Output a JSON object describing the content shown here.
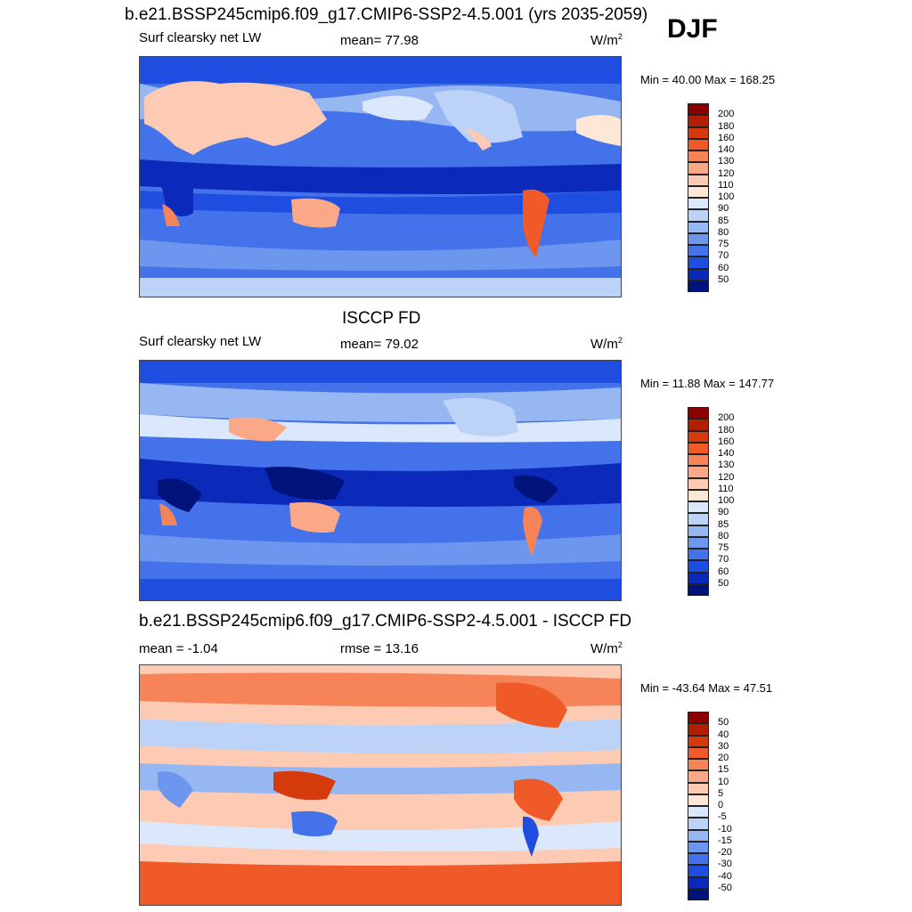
{
  "header": {
    "title": "b.e21.BSSP245cmip6.f09_g17.CMIP6-SSP2-4.5.001 (yrs 2035-2059)",
    "season": "DJF"
  },
  "chart_data": [
    {
      "type": "heatmap",
      "title": "b.e21.BSSP245cmip6.f09_g17.CMIP6-SSP2-4.5.001 (yrs 2035-2059)",
      "variable": "Surf clearsky net LW",
      "stat_text": "mean=  77.98",
      "mean": 77.98,
      "units_base": "W/m",
      "units_exp": "2",
      "minmax_text": "Min =  40.00 Max = 168.25",
      "min": 40.0,
      "max": 168.25,
      "levels": [
        "200",
        "180",
        "160",
        "140",
        "130",
        "120",
        "110",
        "100",
        "90",
        "85",
        "80",
        "75",
        "70",
        "60",
        "50"
      ],
      "colors": [
        "#8b0000",
        "#b21e00",
        "#d43a0c",
        "#f05a28",
        "#f78459",
        "#fba888",
        "#fdcbb4",
        "#fde8d8",
        "#dbe8fb",
        "#bcd3f7",
        "#96b7f2",
        "#6d96ee",
        "#4472ea",
        "#1f4de0",
        "#0b2aba",
        "#00137a"
      ]
    },
    {
      "type": "heatmap",
      "title": "ISCCP FD",
      "variable": "Surf clearsky net LW",
      "stat_text": "mean=  79.02",
      "mean": 79.02,
      "units_base": "W/m",
      "units_exp": "2",
      "minmax_text": "Min =  11.88 Max = 147.77",
      "min": 11.88,
      "max": 147.77,
      "levels": [
        "200",
        "180",
        "160",
        "140",
        "130",
        "120",
        "110",
        "100",
        "90",
        "85",
        "80",
        "75",
        "70",
        "60",
        "50"
      ],
      "colors": [
        "#8b0000",
        "#b21e00",
        "#d43a0c",
        "#f05a28",
        "#f78459",
        "#fba888",
        "#fdcbb4",
        "#fde8d8",
        "#dbe8fb",
        "#bcd3f7",
        "#96b7f2",
        "#6d96ee",
        "#4472ea",
        "#1f4de0",
        "#0b2aba",
        "#00137a"
      ]
    },
    {
      "type": "heatmap",
      "title": "b.e21.BSSP245cmip6.f09_g17.CMIP6-SSP2-4.5.001 - ISCCP FD",
      "stat_text": "mean =  -1.04",
      "mean": -1.04,
      "rmse_text": "rmse =  13.16",
      "rmse": 13.16,
      "units_base": "W/m",
      "units_exp": "2",
      "minmax_text": "Min = -43.64 Max =  47.51",
      "min": -43.64,
      "max": 47.51,
      "levels": [
        "50",
        "40",
        "30",
        "20",
        "15",
        "10",
        "5",
        "0",
        "-5",
        "-10",
        "-15",
        "-20",
        "-30",
        "-40",
        "-50"
      ],
      "colors": [
        "#8b0000",
        "#b21e00",
        "#d43a0c",
        "#f05a28",
        "#f78459",
        "#fba888",
        "#fdcbb4",
        "#fde8d8",
        "#dbe8fb",
        "#bcd3f7",
        "#96b7f2",
        "#6d96ee",
        "#4472ea",
        "#1f4de0",
        "#0b2aba",
        "#00137a"
      ]
    }
  ]
}
